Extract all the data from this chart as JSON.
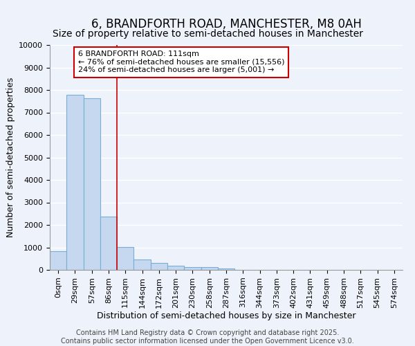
{
  "title": "6, BRANDFORTH ROAD, MANCHESTER, M8 0AH",
  "subtitle": "Size of property relative to semi-detached houses in Manchester",
  "xlabel": "Distribution of semi-detached houses by size in Manchester",
  "ylabel": "Number of semi-detached properties",
  "bar_labels": [
    "0sqm",
    "29sqm",
    "57sqm",
    "86sqm",
    "115sqm",
    "144sqm",
    "172sqm",
    "201sqm",
    "230sqm",
    "258sqm",
    "287sqm",
    "316sqm",
    "344sqm",
    "373sqm",
    "402sqm",
    "431sqm",
    "459sqm",
    "488sqm",
    "517sqm",
    "545sqm",
    "574sqm"
  ],
  "bar_values": [
    820,
    7780,
    7640,
    2380,
    1020,
    460,
    295,
    175,
    120,
    120,
    50,
    0,
    0,
    0,
    0,
    0,
    0,
    0,
    0,
    0,
    0
  ],
  "bar_color": "#c5d8f0",
  "bar_edge_color": "#7aadd4",
  "vline_x": 3.5,
  "vline_color": "#cc0000",
  "annotation_text": "6 BRANDFORTH ROAD: 111sqm\n← 76% of semi-detached houses are smaller (15,556)\n24% of semi-detached houses are larger (5,001) →",
  "annotation_box_color": "#ffffff",
  "annotation_box_edge": "#cc0000",
  "ylim": [
    0,
    10000
  ],
  "yticks": [
    0,
    1000,
    2000,
    3000,
    4000,
    5000,
    6000,
    7000,
    8000,
    9000,
    10000
  ],
  "background_color": "#eef2fa",
  "grid_color": "#ffffff",
  "footer": "Contains HM Land Registry data © Crown copyright and database right 2025.\nContains public sector information licensed under the Open Government Licence v3.0.",
  "title_fontsize": 12,
  "subtitle_fontsize": 10,
  "label_fontsize": 9,
  "tick_fontsize": 8,
  "annotation_fontsize": 8,
  "footer_fontsize": 7
}
